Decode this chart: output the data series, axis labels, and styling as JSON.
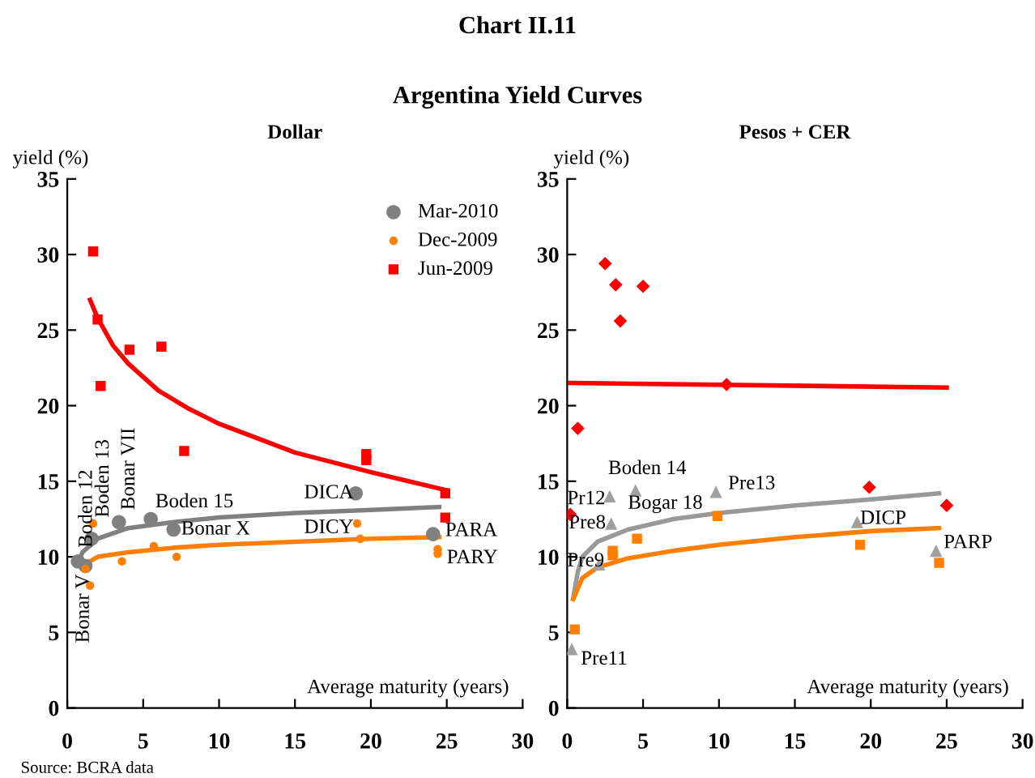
{
  "chart_data": [
    {
      "type": "scatter",
      "title": "Dollar",
      "ylabel": "yield (%)",
      "xlabel": "Average maturity (years)",
      "xlim": [
        0,
        30
      ],
      "ylim": [
        0,
        35
      ],
      "xticks": [
        0,
        5,
        10,
        15,
        20,
        25,
        30
      ],
      "yticks": [
        0,
        5,
        10,
        15,
        20,
        25,
        30,
        35
      ],
      "legend": "top right",
      "annotations": [
        "Chart II.11",
        "Argentina Yield Curves",
        "Source: BCRA data",
        {
          "text": "Bonar V",
          "x": 1.2,
          "y": 9.4
        },
        {
          "text": "Boden 12",
          "x": 0.7,
          "y": 9.7
        },
        {
          "text": "Boden 13",
          "x": 1.6,
          "y": 11.2
        },
        {
          "text": "Bonar VII",
          "x": 3.4,
          "y": 12.3
        },
        {
          "text": "Boden 15",
          "x": 5.5,
          "y": 12.5
        },
        {
          "text": "Bonar X",
          "x": 7.0,
          "y": 11.8
        },
        {
          "text": "DICA",
          "x": 19.0,
          "y": 14.2
        },
        {
          "text": "DICY",
          "x": 19.1,
          "y": 12.2
        },
        {
          "text": "PARA",
          "x": 24.1,
          "y": 11.5
        },
        {
          "text": "PARY",
          "x": 24.4,
          "y": 10.5
        }
      ],
      "series": [
        {
          "name": "Mar-2010",
          "color": "#808080",
          "marker": "circle",
          "x": [
            0.7,
            1.2,
            1.6,
            3.4,
            5.5,
            7.0,
            19.0,
            24.1
          ],
          "values": [
            9.7,
            9.4,
            11.2,
            12.3,
            12.5,
            11.8,
            14.2,
            11.5
          ]
        },
        {
          "name": "Dec-2009",
          "color": "#ff8000",
          "marker": "circle",
          "x": [
            1.2,
            1.5,
            1.7,
            3.6,
            5.7,
            7.2,
            19.1,
            19.3,
            24.4,
            24.4
          ],
          "values": [
            9.2,
            8.1,
            12.2,
            9.7,
            10.7,
            10.0,
            12.2,
            11.2,
            10.5,
            10.2
          ]
        },
        {
          "name": "Jun-2009",
          "color": "#ff0000",
          "marker": "square",
          "x": [
            1.7,
            2.0,
            2.2,
            4.1,
            6.2,
            7.7,
            19.7,
            19.7,
            24.9,
            24.9
          ],
          "values": [
            30.2,
            25.7,
            21.3,
            23.7,
            23.9,
            17.0,
            16.8,
            16.4,
            14.2,
            12.6
          ]
        },
        {
          "type": "line",
          "color": "#ff0000",
          "x": [
            1.5,
            2,
            3,
            4,
            6,
            8,
            10,
            15,
            20,
            25
          ],
          "values": [
            27,
            25.8,
            24,
            22.8,
            21,
            19.8,
            18.8,
            16.9,
            15.6,
            14.4
          ]
        },
        {
          "type": "line",
          "color": "#808080",
          "x": [
            0.8,
            1,
            2,
            4,
            7,
            10,
            15,
            20,
            24.5
          ],
          "values": [
            9.8,
            10.3,
            11.2,
            11.9,
            12.3,
            12.6,
            12.9,
            13.1,
            13.3
          ]
        },
        {
          "type": "line",
          "color": "#ff8000",
          "x": [
            1.2,
            1.5,
            2,
            4,
            7,
            10,
            15,
            20,
            24.5
          ],
          "values": [
            9.3,
            9.7,
            10.0,
            10.3,
            10.6,
            10.8,
            11.0,
            11.2,
            11.3
          ]
        }
      ]
    },
    {
      "type": "scatter",
      "title": "Pesos + CER",
      "ylabel": "yield (%)",
      "xlabel": "Average maturity (years)",
      "xlim": [
        0,
        30
      ],
      "ylim": [
        0,
        35
      ],
      "xticks": [
        0,
        5,
        10,
        15,
        20,
        25,
        30
      ],
      "yticks": [
        0,
        5,
        10,
        15,
        20,
        25,
        30,
        35
      ],
      "annotations": [
        {
          "text": "Boden 14",
          "x": 4.5,
          "y": 14.4
        },
        {
          "text": "Pr12",
          "x": 2.8,
          "y": 14.0
        },
        {
          "text": "Bogar 18",
          "x": 4.5,
          "y": 14.4
        },
        {
          "text": "Pre13",
          "x": 9.8,
          "y": 14.3
        },
        {
          "text": "Pre8",
          "x": 2.9,
          "y": 12.2
        },
        {
          "text": "Pre9",
          "x": 2.1,
          "y": 9.5
        },
        {
          "text": "Pre11",
          "x": 0.3,
          "y": 3.9
        },
        {
          "text": "DICP",
          "x": 19.1,
          "y": 12.3
        },
        {
          "text": "PARP",
          "x": 24.3,
          "y": 10.4
        }
      ],
      "series": [
        {
          "color": "#ff0000",
          "marker": "diamond",
          "x": [
            2.5,
            3.2,
            3.5,
            5.0,
            10.5,
            0.7,
            0.2,
            19.9,
            25.0
          ],
          "values": [
            29.4,
            28.0,
            25.6,
            27.9,
            21.4,
            18.5,
            12.8,
            14.6,
            13.4
          ]
        },
        {
          "color": "#a0a0a0",
          "marker": "triangle",
          "x": [
            2.8,
            4.5,
            9.8,
            2.9,
            2.1,
            19.1,
            24.3,
            0.3
          ],
          "values": [
            14.0,
            14.4,
            14.3,
            12.2,
            9.5,
            12.3,
            10.4,
            3.9
          ]
        },
        {
          "color": "#ff8000",
          "marker": "square",
          "x": [
            0.5,
            3.0,
            3.0,
            4.6,
            9.9,
            19.3,
            24.5
          ],
          "values": [
            5.2,
            10.4,
            10.1,
            11.2,
            12.7,
            10.8,
            9.6
          ]
        },
        {
          "type": "line",
          "color": "#ff0000",
          "x": [
            0.2,
            25
          ],
          "values": [
            21.5,
            21.2
          ]
        },
        {
          "type": "line",
          "color": "#999999",
          "x": [
            0.4,
            0.7,
            1,
            2,
            4,
            7,
            10,
            15,
            20,
            24.5
          ],
          "values": [
            7.3,
            9,
            10,
            11,
            11.8,
            12.5,
            12.9,
            13.4,
            13.8,
            14.2
          ]
        },
        {
          "type": "line",
          "color": "#ff8000",
          "x": [
            0.4,
            1,
            2,
            4,
            7,
            10,
            15,
            20,
            24.5
          ],
          "values": [
            7.2,
            8.6,
            9.3,
            9.9,
            10.4,
            10.8,
            11.3,
            11.7,
            11.9
          ]
        }
      ]
    }
  ]
}
